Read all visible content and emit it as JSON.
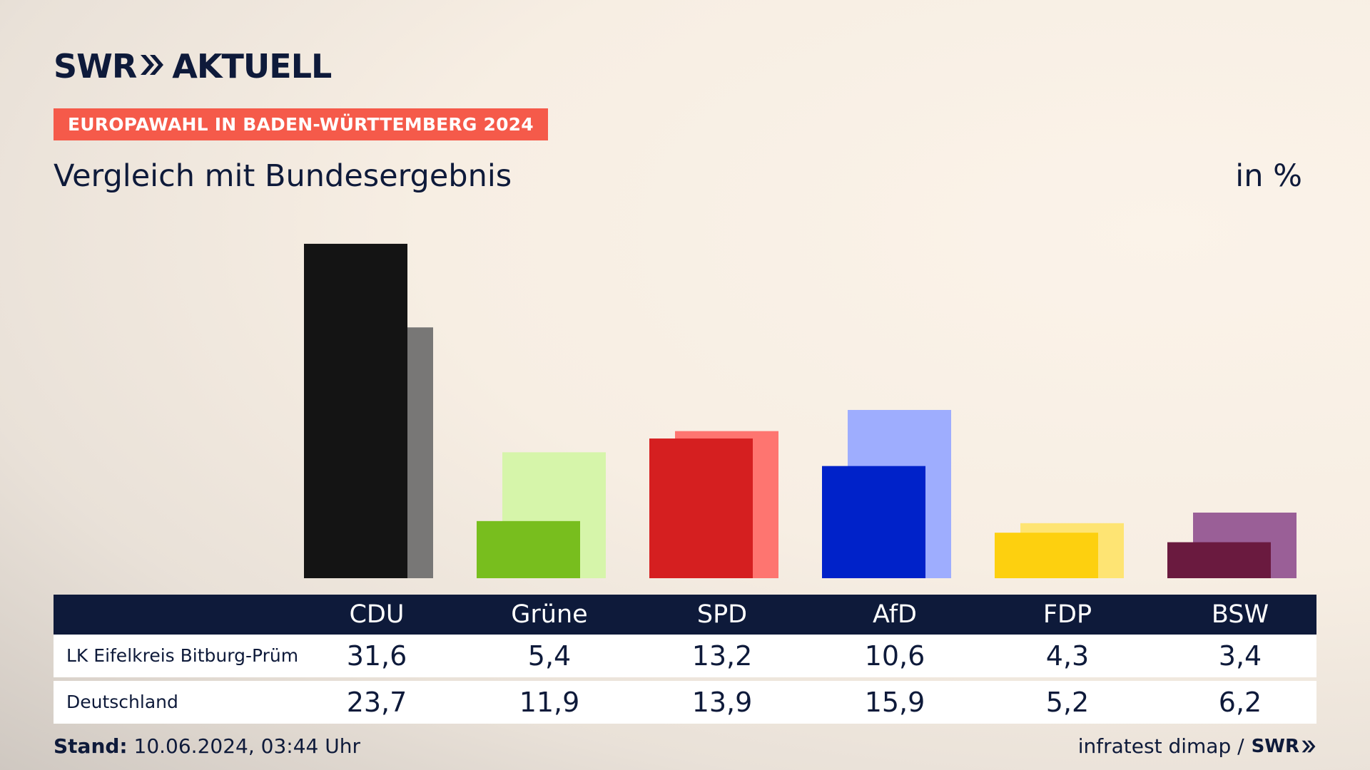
{
  "header": {
    "brand_left": "SWR",
    "brand_right": "AKTUELL",
    "badge": "EUROPAWAHL IN BADEN-WÜRTTEMBERG 2024",
    "subtitle": "Vergleich mit Bundesergebnis",
    "unit": "in %"
  },
  "chart_data": {
    "type": "bar",
    "categories": [
      "CDU",
      "Grüne",
      "SPD",
      "AfD",
      "FDP",
      "BSW"
    ],
    "series": [
      {
        "name": "LK Eifelkreis Bitburg-Prüm",
        "values": [
          31.6,
          5.4,
          13.2,
          10.6,
          4.3,
          3.4
        ]
      },
      {
        "name": "Deutschland",
        "values": [
          23.7,
          11.9,
          13.9,
          15.9,
          5.2,
          6.2
        ]
      }
    ],
    "display_values": [
      [
        "31,6",
        "5,4",
        "13,2",
        "10,6",
        "4,3",
        "3,4"
      ],
      [
        "23,7",
        "11,9",
        "13,9",
        "15,9",
        "5,2",
        "6,2"
      ]
    ],
    "colors": {
      "primary": [
        "#141414",
        "#78be1e",
        "#d51f20",
        "#0022c9",
        "#fdd00f",
        "#6a1a3f"
      ],
      "secondary": [
        "#787776",
        "#d6f5aa",
        "#fe7570",
        "#9eadfe",
        "#fee473",
        "#9a5f97"
      ]
    },
    "ylim": [
      0,
      32
    ],
    "title": "Vergleich mit Bundesergebnis",
    "legend": "table-below"
  },
  "footer": {
    "stand_label": "Stand:",
    "stand_value": " 10.06.2024, 03:44 Uhr",
    "source": "infratest dimap /",
    "source_brand": "SWR"
  }
}
